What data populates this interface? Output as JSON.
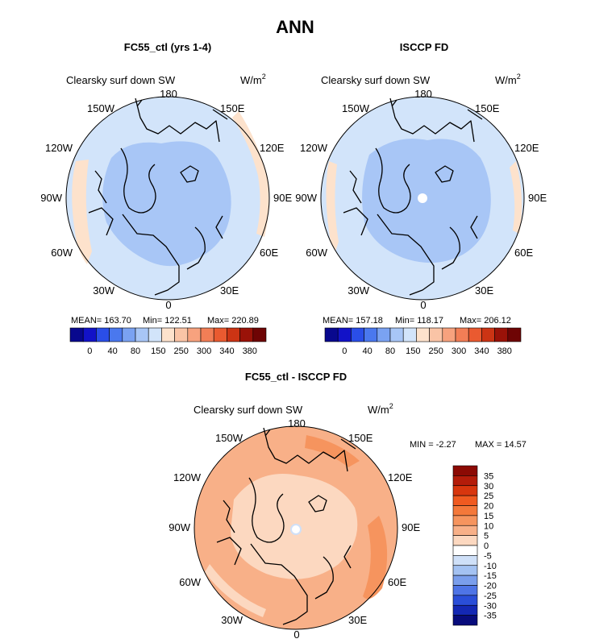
{
  "figure_title": "ANN",
  "chart_data": [
    {
      "type": "heatmap",
      "projection": "north-polar-stereographic",
      "title": "FC55_ctl (yrs 1-4)",
      "field": "Clearsky surf down SW",
      "units": {
        "base": "W/m",
        "sup": "2"
      },
      "lon_labels": [
        "180",
        "150E",
        "120E",
        "90E",
        "60E",
        "30E",
        "0",
        "30W",
        "60W",
        "90W",
        "120W",
        "150W"
      ],
      "stats": {
        "mean": "MEAN= 163.70",
        "min": "Min= 122.51",
        "max": "Max= 220.89"
      },
      "colorbar": {
        "ticks": [
          "0",
          "40",
          "80",
          "150",
          "250",
          "300",
          "340",
          "380"
        ],
        "colors": [
          "#08088e",
          "#1212c8",
          "#2a4ee8",
          "#4a78ee",
          "#7aa2f2",
          "#a8c6f6",
          "#d2e4fa",
          "#fde2cc",
          "#fac4a6",
          "#f7a27e",
          "#f27e56",
          "#ea5a30",
          "#cc3414",
          "#9a1208",
          "#6e0404"
        ]
      },
      "regions": {
        "ocean": "#d2e4fa",
        "arctic": "#a8c6f6",
        "edge": "#fde2cc"
      }
    },
    {
      "type": "heatmap",
      "projection": "north-polar-stereographic",
      "title": "ISCCP FD",
      "field": "Clearsky surf down SW",
      "units": {
        "base": "W/m",
        "sup": "2"
      },
      "lon_labels": [
        "180",
        "150E",
        "120E",
        "90E",
        "60E",
        "30E",
        "0",
        "30W",
        "60W",
        "90W",
        "120W",
        "150W"
      ],
      "stats": {
        "mean": "MEAN= 157.18",
        "min": "Min= 118.17",
        "max": "Max= 206.12"
      },
      "colorbar": {
        "ticks": [
          "0",
          "40",
          "80",
          "150",
          "250",
          "300",
          "340",
          "380"
        ],
        "colors": [
          "#08088e",
          "#1212c8",
          "#2a4ee8",
          "#4a78ee",
          "#7aa2f2",
          "#a8c6f6",
          "#d2e4fa",
          "#fde2cc",
          "#fac4a6",
          "#f7a27e",
          "#f27e56",
          "#ea5a30",
          "#cc3414",
          "#9a1208",
          "#6e0404"
        ]
      },
      "regions": {
        "ocean": "#d2e4fa",
        "arctic": "#a8c6f6",
        "edge": "#fde2cc",
        "pole": "#ffffff"
      }
    },
    {
      "type": "heatmap",
      "projection": "north-polar-stereographic",
      "title": "FC55_ctl - ISCCP FD",
      "field": "Clearsky surf down SW",
      "units": {
        "base": "W/m",
        "sup": "2"
      },
      "lon_labels": [
        "180",
        "150E",
        "120E",
        "90E",
        "60E",
        "30E",
        "0",
        "30W",
        "60W",
        "90W",
        "120W",
        "150W"
      ],
      "stats": {
        "min": "MIN =   -2.27",
        "max": "MAX =   14.57"
      },
      "colorbar": {
        "ticks": [
          "35",
          "30",
          "25",
          "20",
          "15",
          "10",
          "5",
          "0",
          "-5",
          "-10",
          "-15",
          "-20",
          "-25",
          "-30",
          "-35"
        ],
        "colors": [
          "#8c0a04",
          "#b41c0a",
          "#d8360e",
          "#f05a20",
          "#f4783a",
          "#f6945e",
          "#f8b088",
          "#fcd8c0",
          "#ffffff",
          "#cfe0f8",
          "#a4c2f2",
          "#7a9eec",
          "#4e74e6",
          "#2a4ed8",
          "#1428b4",
          "#080c7c"
        ]
      },
      "regions": {
        "base": "#f8b088",
        "inner": "#fcd8c0",
        "hi": "#f6945e",
        "pole": "#ffffff"
      }
    }
  ]
}
